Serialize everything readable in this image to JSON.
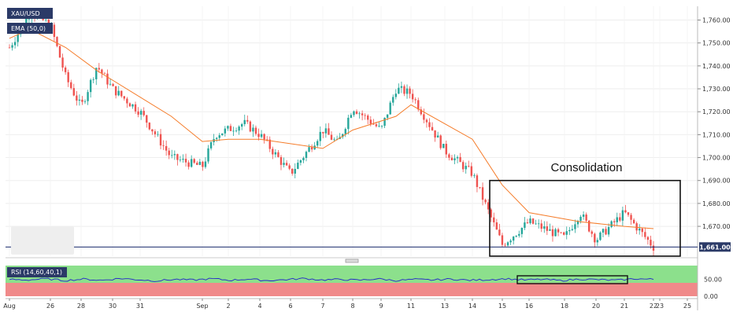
{
  "chart_data": [
    {
      "type": "candlestick",
      "symbol_label": "XAU/USD",
      "indicator_label": "EMA (50,0)",
      "annotation": "Consolidation",
      "price_label": "1,661.00",
      "y_ticks": [
        "1,760.00",
        "1,750.00",
        "1,740.00",
        "1,730.00",
        "1,720.00",
        "1,710.00",
        "1,700.00",
        "1,690.00",
        "1,680.00",
        "1,670.00"
      ],
      "ylim": [
        1657,
        1766
      ],
      "x_ticks": [
        "Aug",
        "26",
        "28",
        "30",
        "31",
        "Sep",
        "2",
        "4",
        "6",
        "7",
        "8",
        "9",
        "11",
        "13",
        "14",
        "15",
        "16",
        "18",
        "20",
        "21",
        "22",
        "23",
        "25"
      ],
      "last_price": 1661,
      "consolidation_range": [
        1657,
        1690
      ],
      "price_path": [
        {
          "d": "Aug 24",
          "v": 1748
        },
        {
          "d": "Aug 25",
          "v": 1763
        },
        {
          "d": "Aug 26",
          "v": 1758
        },
        {
          "d": "Aug 27",
          "v": 1735
        },
        {
          "d": "Aug 28",
          "v": 1722
        },
        {
          "d": "Aug 29",
          "v": 1740
        },
        {
          "d": "Aug 30",
          "v": 1730
        },
        {
          "d": "Aug 31",
          "v": 1720
        },
        {
          "d": "Sep 1",
          "v": 1700
        },
        {
          "d": "Sep 2",
          "v": 1696
        },
        {
          "d": "Sep 3",
          "v": 1710
        },
        {
          "d": "Sep 5",
          "v": 1715
        },
        {
          "d": "Sep 6",
          "v": 1710
        },
        {
          "d": "Sep 7",
          "v": 1693
        },
        {
          "d": "Sep 8",
          "v": 1712
        },
        {
          "d": "Sep 9",
          "v": 1706
        },
        {
          "d": "Sep 10",
          "v": 1722
        },
        {
          "d": "Sep 11",
          "v": 1712
        },
        {
          "d": "Sep 12",
          "v": 1730
        },
        {
          "d": "Sep 13",
          "v": 1728
        },
        {
          "d": "Sep 14",
          "v": 1703
        },
        {
          "d": "Sep 15",
          "v": 1693
        },
        {
          "d": "Sep 16",
          "v": 1662
        },
        {
          "d": "Sep 17",
          "v": 1672
        },
        {
          "d": "Sep 18",
          "v": 1665
        },
        {
          "d": "Sep 19",
          "v": 1676
        },
        {
          "d": "Sep 20",
          "v": 1664
        },
        {
          "d": "Sep 21",
          "v": 1676
        },
        {
          "d": "Sep 22",
          "v": 1661
        }
      ],
      "ema_path": [
        {
          "d": "Aug 24",
          "v": 1752
        },
        {
          "d": "Aug 25",
          "v": 1756
        },
        {
          "d": "Aug 27",
          "v": 1748
        },
        {
          "d": "Aug 29",
          "v": 1738
        },
        {
          "d": "Sep 1",
          "v": 1718
        },
        {
          "d": "Sep 2",
          "v": 1707
        },
        {
          "d": "Sep 4",
          "v": 1708
        },
        {
          "d": "Sep 6",
          "v": 1708
        },
        {
          "d": "Sep 8",
          "v": 1704
        },
        {
          "d": "Sep 10",
          "v": 1712
        },
        {
          "d": "Sep 12",
          "v": 1718
        },
        {
          "d": "Sep 13",
          "v": 1723
        },
        {
          "d": "Sep 15",
          "v": 1708
        },
        {
          "d": "Sep 16",
          "v": 1688
        },
        {
          "d": "Sep 17",
          "v": 1676
        },
        {
          "d": "Sep 19",
          "v": 1672
        },
        {
          "d": "Sep 21",
          "v": 1670
        },
        {
          "d": "Sep 22",
          "v": 1669
        }
      ],
      "colors": {
        "up": "#26a69a",
        "down": "#ef5350",
        "ema": "#f57c2a",
        "price_line": "#1a2a6c",
        "label_bg": "#2b3a67"
      }
    },
    {
      "type": "line",
      "indicator_label": "RSI (14,60,40,1)",
      "y_ticks": [
        "50.00",
        "0.00"
      ],
      "ylim": [
        0,
        100
      ],
      "overbought": 60,
      "oversold": 40,
      "series": [
        {
          "values": [
            55,
            53,
            57,
            51,
            56,
            52,
            58,
            54,
            50,
            55,
            53,
            57,
            52,
            56,
            51,
            54,
            58,
            53,
            55,
            52,
            57,
            51,
            55,
            53,
            56,
            52,
            54,
            57,
            53,
            55,
            51,
            56,
            54,
            52,
            57,
            55
          ]
        }
      ],
      "colors": {
        "upper_zone": "#8ce08c",
        "lower_zone": "#f08a8a",
        "line": "#2222cc"
      }
    }
  ]
}
